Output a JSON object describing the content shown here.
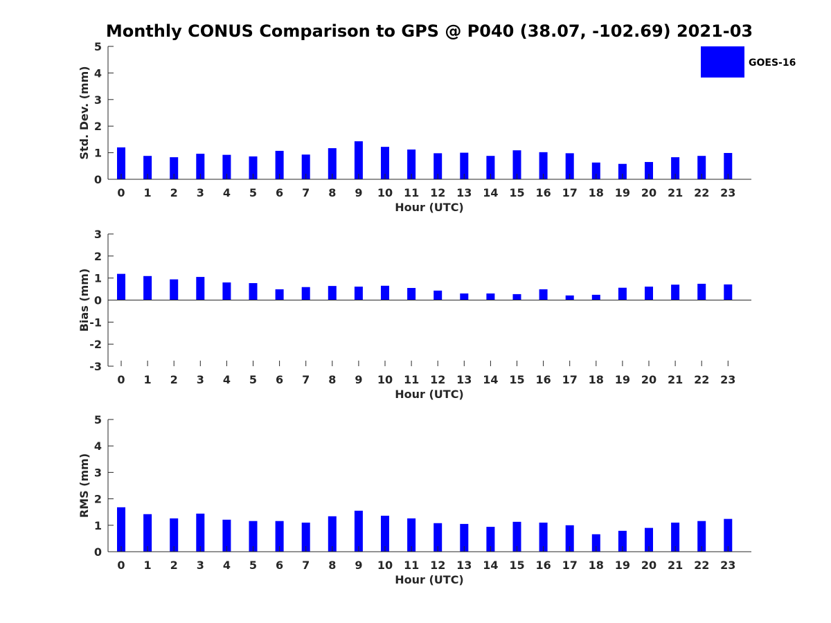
{
  "chart_data": {
    "title": "Monthly CONUS Comparison to GPS @ P040 (38.07, -102.69) 2021-03",
    "legend": {
      "label": "GOES-16",
      "color": "#0000ff",
      "placement": "top-right"
    },
    "panels": [
      {
        "type": "bar",
        "ylabel": "Std. Dev. (mm)",
        "xlabel": "Hour (UTC)",
        "ylim": [
          0,
          5
        ],
        "yticks": [
          0,
          1,
          2,
          3,
          4,
          5
        ],
        "categories": [
          "0",
          "1",
          "2",
          "3",
          "4",
          "5",
          "6",
          "7",
          "8",
          "9",
          "10",
          "11",
          "12",
          "13",
          "14",
          "15",
          "16",
          "17",
          "18",
          "19",
          "20",
          "21",
          "22",
          "23"
        ],
        "series": [
          {
            "name": "GOES-16",
            "values": [
              1.2,
              0.88,
              0.83,
              0.96,
              0.92,
              0.86,
              1.07,
              0.93,
              1.17,
              1.43,
              1.22,
              1.12,
              0.98,
              1.0,
              0.88,
              1.09,
              1.02,
              0.98,
              0.63,
              0.58,
              0.65,
              0.83,
              0.88,
              0.99
            ]
          }
        ]
      },
      {
        "type": "bar",
        "ylabel": "Bias (mm)",
        "xlabel": "Hour (UTC)",
        "ylim": [
          -3,
          3
        ],
        "yticks": [
          -3,
          -2,
          -1,
          0,
          1,
          2,
          3
        ],
        "categories": [
          "0",
          "1",
          "2",
          "3",
          "4",
          "5",
          "6",
          "7",
          "8",
          "9",
          "10",
          "11",
          "12",
          "13",
          "14",
          "15",
          "16",
          "17",
          "18",
          "19",
          "20",
          "21",
          "22",
          "23"
        ],
        "series": [
          {
            "name": "GOES-16",
            "values": [
              1.19,
              1.09,
              0.94,
              1.05,
              0.8,
              0.77,
              0.49,
              0.59,
              0.64,
              0.61,
              0.65,
              0.55,
              0.43,
              0.3,
              0.3,
              0.27,
              0.49,
              0.21,
              0.24,
              0.56,
              0.61,
              0.7,
              0.74,
              0.71
            ]
          }
        ]
      },
      {
        "type": "bar",
        "ylabel": "RMS (mm)",
        "xlabel": "Hour (UTC)",
        "ylim": [
          0,
          5
        ],
        "yticks": [
          0,
          1,
          2,
          3,
          4,
          5
        ],
        "categories": [
          "0",
          "1",
          "2",
          "3",
          "4",
          "5",
          "6",
          "7",
          "8",
          "9",
          "10",
          "11",
          "12",
          "13",
          "14",
          "15",
          "16",
          "17",
          "18",
          "19",
          "20",
          "21",
          "22",
          "23"
        ],
        "series": [
          {
            "name": "GOES-16",
            "values": [
              1.68,
              1.42,
              1.26,
              1.44,
              1.21,
              1.16,
              1.16,
              1.1,
              1.34,
              1.55,
              1.36,
              1.26,
              1.08,
              1.05,
              0.94,
              1.13,
              1.1,
              1.0,
              0.66,
              0.79,
              0.9,
              1.1,
              1.16,
              1.24
            ]
          }
        ]
      }
    ]
  }
}
